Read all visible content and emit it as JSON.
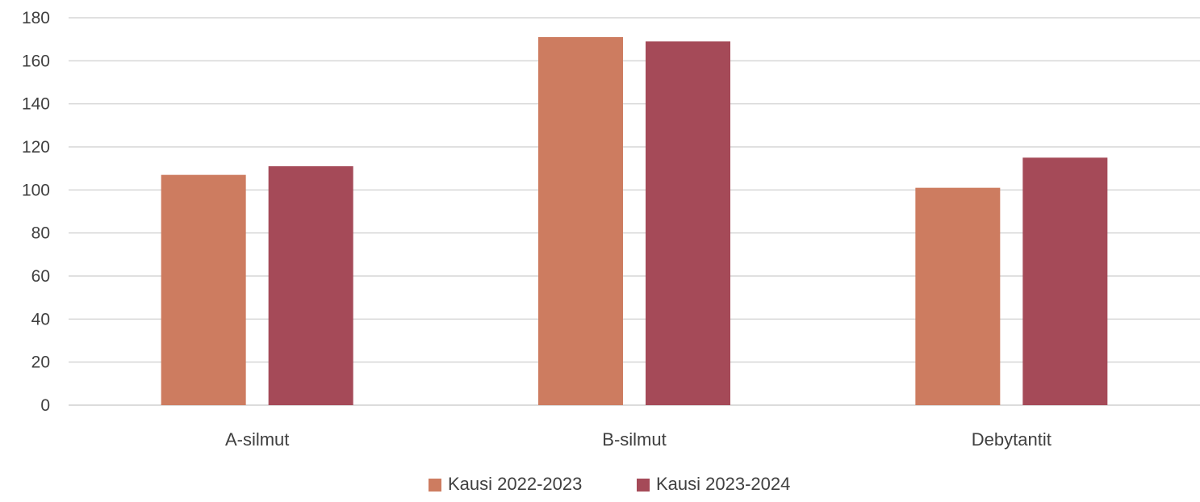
{
  "chart_data": {
    "type": "bar",
    "title": "",
    "xlabel": "",
    "ylabel": "",
    "categories": [
      "A-silmut",
      "B-silmut",
      "Debytantit"
    ],
    "series": [
      {
        "name": "Kausi 2022-2023",
        "color": "#cd7c60",
        "values": [
          107,
          171,
          101
        ]
      },
      {
        "name": "Kausi 2023-2024",
        "color": "#a54a58",
        "values": [
          111,
          169,
          115
        ]
      }
    ],
    "ylim": [
      0,
      180
    ],
    "yticks": [
      0,
      20,
      40,
      60,
      80,
      100,
      120,
      140,
      160,
      180
    ],
    "grid": true,
    "legend": "bottom-center"
  }
}
